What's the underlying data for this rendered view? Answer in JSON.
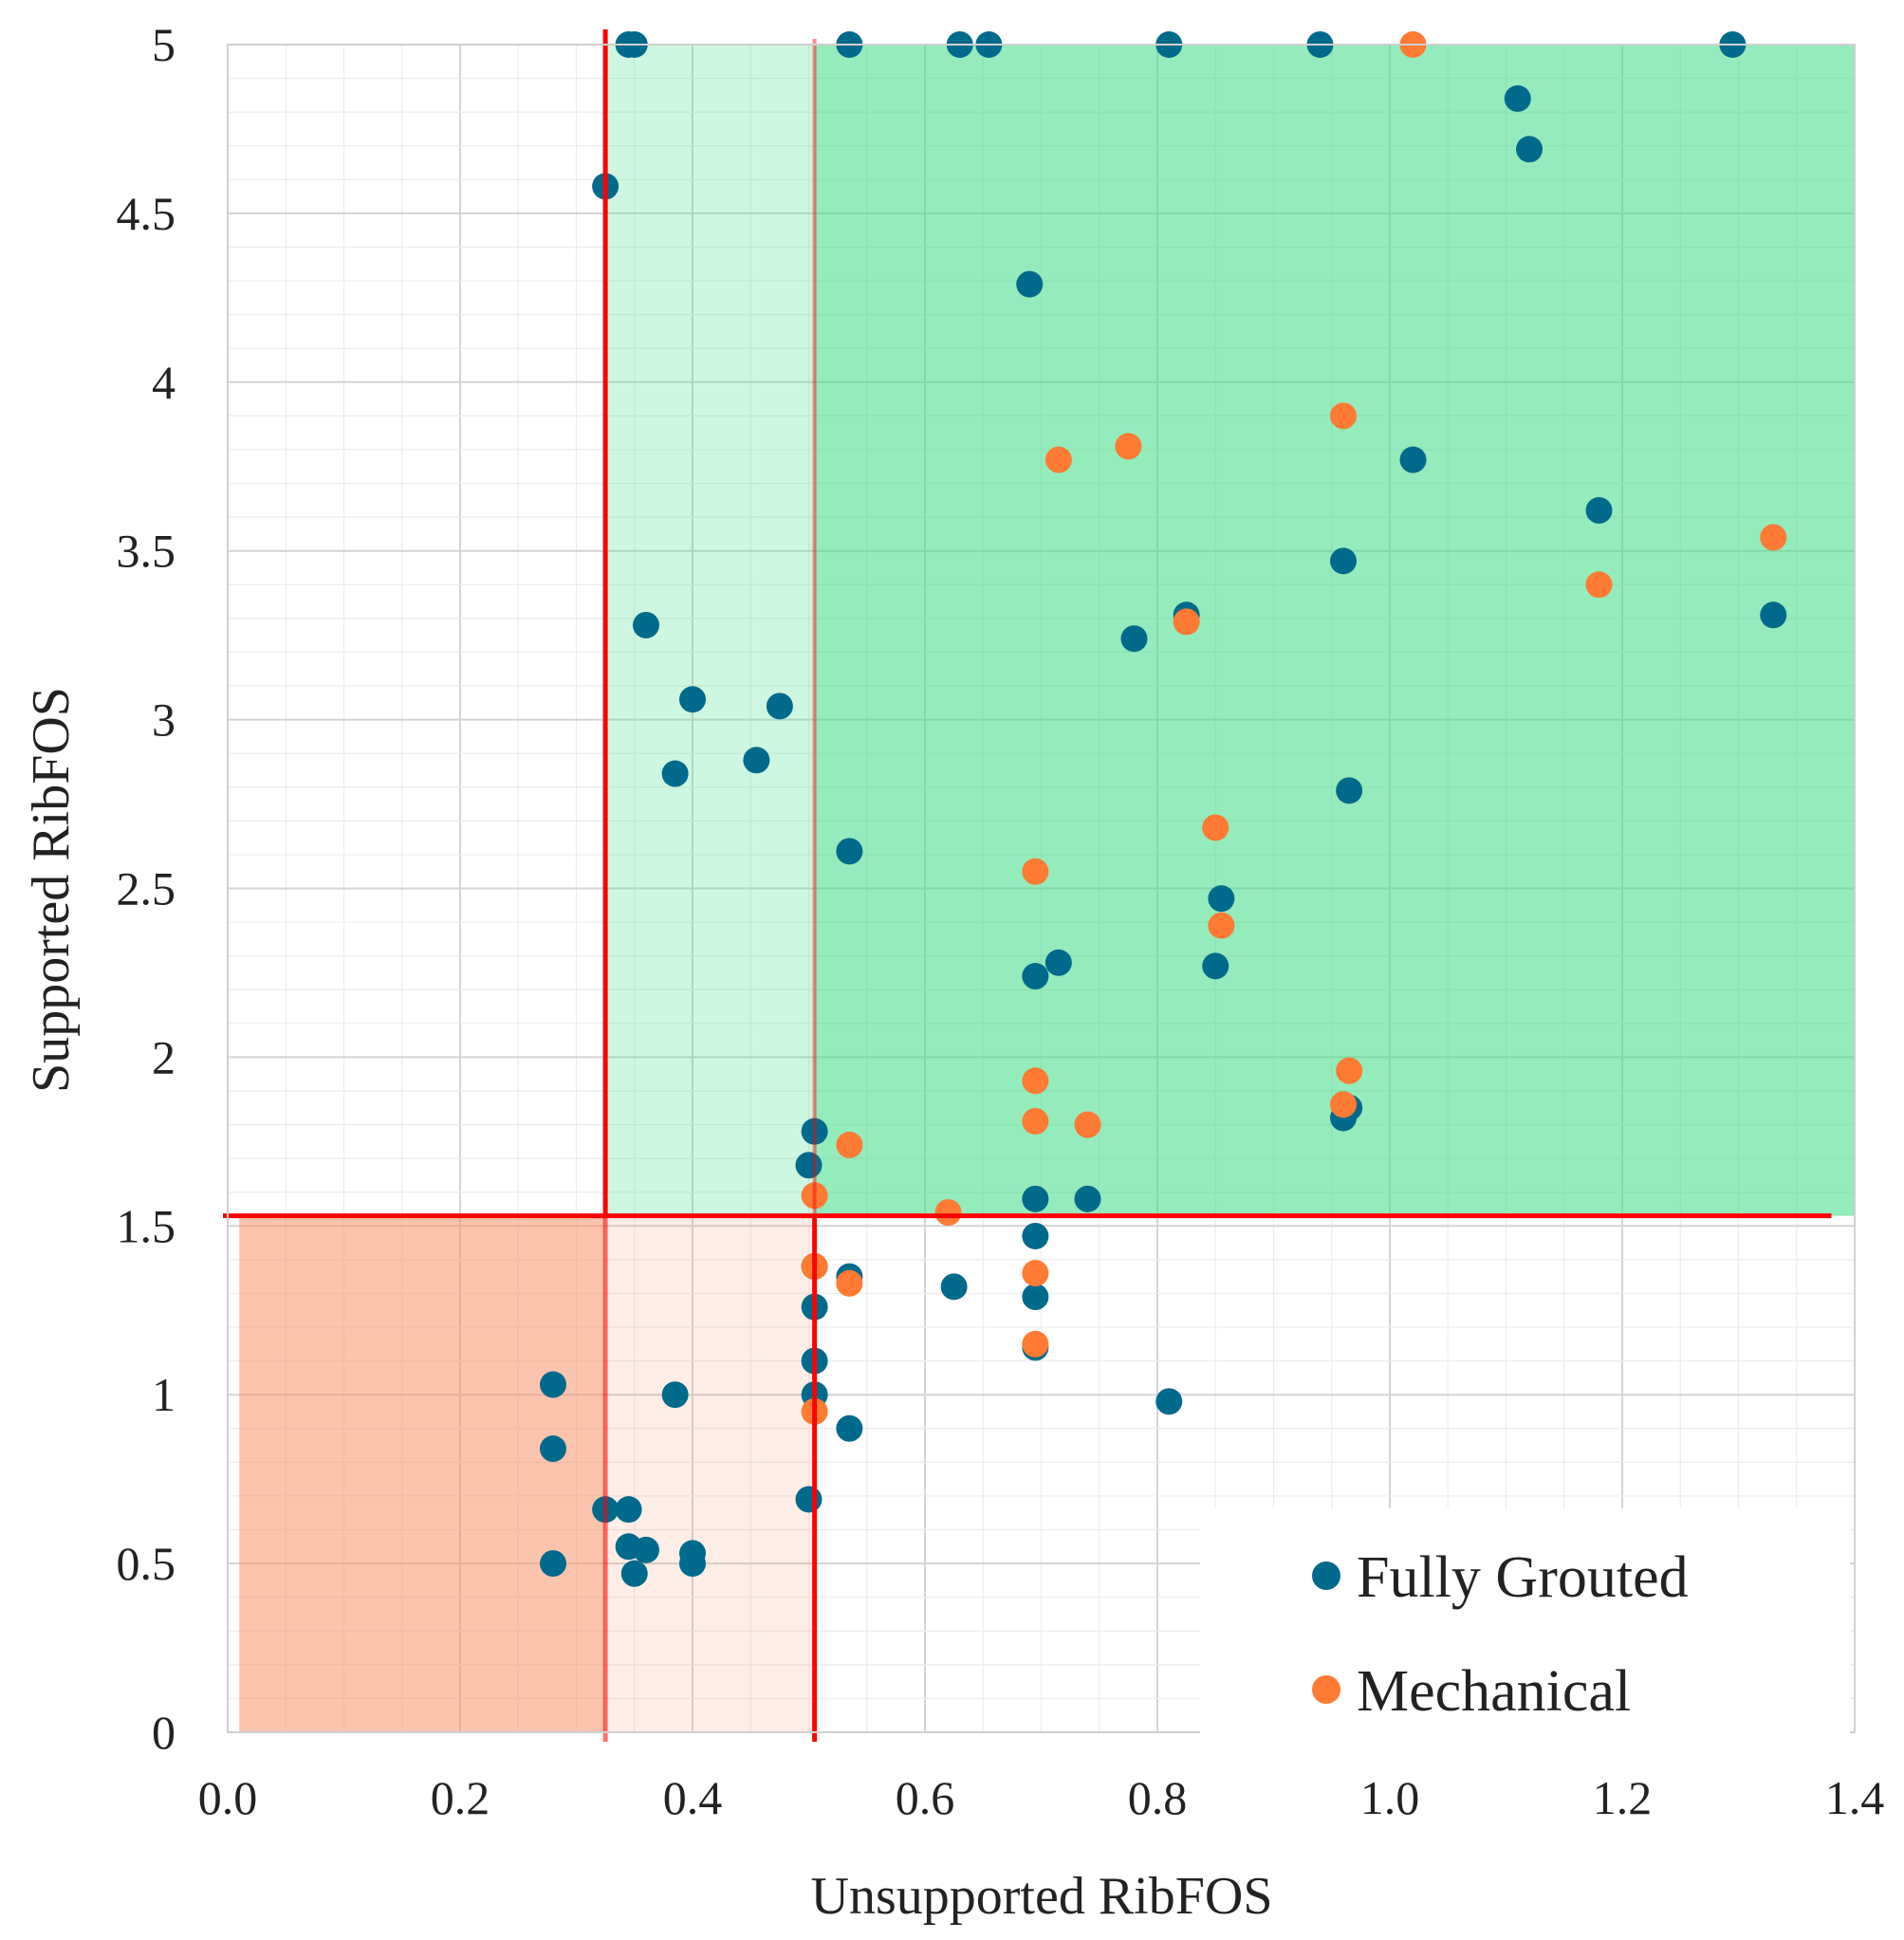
{
  "chart_data": {
    "type": "scatter",
    "title": "",
    "xlabel": "Unsupported RibFOS",
    "ylabel": "Supported RibFOS",
    "xlim": [
      0,
      1.4
    ],
    "ylim": [
      0,
      5
    ],
    "x_ticks": [
      "0.0",
      "0.2",
      "0.4",
      "0.6",
      "0.8",
      "1.0",
      "1.2",
      "1.4"
    ],
    "y_ticks": [
      "0",
      "0.5",
      "1",
      "1.5",
      "2",
      "2.5",
      "3",
      "3.5",
      "4",
      "4.5",
      "5"
    ],
    "grid": "major and minor",
    "legend_position": "bottom-right",
    "thresholds": {
      "x_lower": 0.325,
      "x_upper": 0.505,
      "y": 1.53
    },
    "regions": [
      {
        "name": "stable-zone",
        "x": [
          0.505,
          1.4
        ],
        "y": [
          1.53,
          5
        ],
        "color": "#3ddb84",
        "opacity": 0.55
      },
      {
        "name": "transition-stable-zone",
        "x": [
          0.325,
          0.505
        ],
        "y": [
          1.53,
          5
        ],
        "color": "#3ddb84",
        "opacity": 0.25
      },
      {
        "name": "failure-zone",
        "x": [
          0.01,
          0.325
        ],
        "y": [
          0,
          1.53
        ],
        "color": "#f98a5c",
        "opacity": 0.5
      },
      {
        "name": "transition-failure-zone",
        "x": [
          0.325,
          0.505
        ],
        "y": [
          0,
          1.53
        ],
        "color": "#f98a5c",
        "opacity": 0.15
      }
    ],
    "threshold_line_color": "#ff0000",
    "series": [
      {
        "name": "Fully Grouted",
        "color": "#006a8c",
        "points": [
          [
            0.345,
            5.0
          ],
          [
            0.35,
            5.0
          ],
          [
            0.535,
            5.0
          ],
          [
            0.63,
            5.0
          ],
          [
            0.655,
            5.0
          ],
          [
            0.81,
            5.0
          ],
          [
            0.94,
            5.0
          ],
          [
            1.295,
            5.0
          ],
          [
            1.11,
            4.84
          ],
          [
            1.12,
            4.69
          ],
          [
            0.325,
            4.58
          ],
          [
            0.69,
            4.29
          ],
          [
            1.02,
            3.77
          ],
          [
            1.18,
            3.62
          ],
          [
            0.96,
            3.47
          ],
          [
            0.825,
            3.31
          ],
          [
            1.33,
            3.31
          ],
          [
            0.78,
            3.24
          ],
          [
            0.36,
            3.28
          ],
          [
            0.4,
            3.06
          ],
          [
            0.475,
            3.04
          ],
          [
            0.385,
            2.84
          ],
          [
            0.455,
            2.88
          ],
          [
            0.965,
            2.79
          ],
          [
            0.535,
            2.61
          ],
          [
            0.855,
            2.47
          ],
          [
            0.715,
            2.28
          ],
          [
            0.85,
            2.27
          ],
          [
            0.695,
            2.24
          ],
          [
            0.965,
            1.85
          ],
          [
            0.96,
            1.82
          ],
          [
            0.505,
            1.78
          ],
          [
            0.5,
            1.68
          ],
          [
            0.695,
            1.58
          ],
          [
            0.74,
            1.58
          ],
          [
            0.695,
            1.47
          ],
          [
            0.535,
            1.35
          ],
          [
            0.505,
            1.38
          ],
          [
            0.625,
            1.32
          ],
          [
            0.695,
            1.29
          ],
          [
            0.505,
            1.26
          ],
          [
            0.695,
            1.14
          ],
          [
            0.505,
            1.1
          ],
          [
            0.505,
            1.0
          ],
          [
            0.81,
            0.98
          ],
          [
            0.535,
            0.9
          ],
          [
            0.5,
            0.69
          ],
          [
            0.28,
            1.03
          ],
          [
            0.385,
            1.0
          ],
          [
            0.28,
            0.84
          ],
          [
            0.325,
            0.66
          ],
          [
            0.345,
            0.66
          ],
          [
            0.345,
            0.55
          ],
          [
            0.36,
            0.54
          ],
          [
            0.4,
            0.53
          ],
          [
            0.4,
            0.5
          ],
          [
            0.28,
            0.5
          ],
          [
            0.35,
            0.47
          ]
        ]
      },
      {
        "name": "Mechanical",
        "color": "#ff7a33",
        "points": [
          [
            1.02,
            5.0
          ],
          [
            0.96,
            3.9
          ],
          [
            0.775,
            3.81
          ],
          [
            0.715,
            3.77
          ],
          [
            1.33,
            3.54
          ],
          [
            1.18,
            3.4
          ],
          [
            0.825,
            3.29
          ],
          [
            0.85,
            2.68
          ],
          [
            0.695,
            2.55
          ],
          [
            0.855,
            2.39
          ],
          [
            0.965,
            1.96
          ],
          [
            0.695,
            1.93
          ],
          [
            0.96,
            1.86
          ],
          [
            0.695,
            1.81
          ],
          [
            0.74,
            1.8
          ],
          [
            0.535,
            1.74
          ],
          [
            0.505,
            1.59
          ],
          [
            0.62,
            1.54
          ],
          [
            0.505,
            1.38
          ],
          [
            0.535,
            1.33
          ],
          [
            0.695,
            1.36
          ],
          [
            0.695,
            1.15
          ],
          [
            0.505,
            0.95
          ]
        ]
      }
    ]
  }
}
